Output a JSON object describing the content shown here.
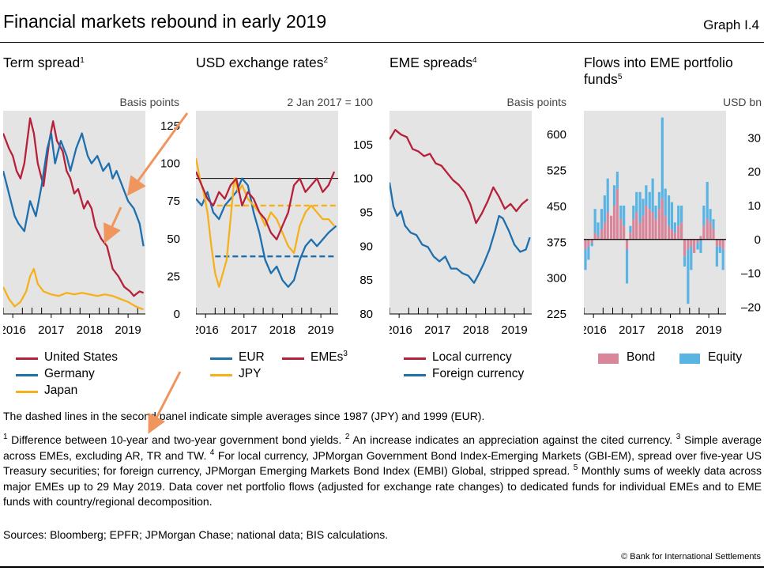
{
  "header": {
    "title": "Financial markets rebound in early 2019",
    "graph_number": "Graph I.4"
  },
  "colors": {
    "us": "#b5213a",
    "germany": "#1d6fae",
    "japan": "#f5b11b",
    "eur": "#1d6fae",
    "jpy": "#f5b11b",
    "emes": "#b5213a",
    "local": "#b5213a",
    "foreign": "#1d6fae",
    "bond": "#d9859a",
    "equity": "#5ab4e3",
    "panel_bg": "#e4e4e4",
    "arrow": "#f0955e"
  },
  "chart_data": [
    {
      "type": "line",
      "title": "Term spread",
      "title_sup": "1",
      "ylabel": "Basis points",
      "ylim": [
        0,
        135
      ],
      "yticks": [
        "125",
        "100",
        "75",
        "50",
        "25",
        "0"
      ],
      "ytick_values": [
        125,
        100,
        75,
        50,
        25,
        0
      ],
      "xlim": [
        2015.75,
        2019.45
      ],
      "xticks": [
        "2016",
        "2017",
        "2018",
        "2019"
      ],
      "xtick_values": [
        2016,
        2017,
        2018,
        2019
      ],
      "series": [
        {
          "name": "United States",
          "color_key": "us",
          "x": [
            2015.75,
            2015.9,
            2016.0,
            2016.1,
            2016.2,
            2016.3,
            2016.45,
            2016.55,
            2016.65,
            2016.8,
            2016.95,
            2017.05,
            2017.15,
            2017.3,
            2017.4,
            2017.5,
            2017.6,
            2017.7,
            2017.85,
            2017.95,
            2018.05,
            2018.15,
            2018.3,
            2018.45,
            2018.6,
            2018.75,
            2018.9,
            2019.05,
            2019.15,
            2019.3,
            2019.4
          ],
          "values": [
            120,
            110,
            105,
            95,
            90,
            100,
            130,
            120,
            100,
            85,
            115,
            128,
            115,
            108,
            95,
            90,
            80,
            83,
            70,
            75,
            70,
            58,
            50,
            45,
            30,
            25,
            18,
            15,
            12,
            15,
            14
          ]
        },
        {
          "name": "Germany",
          "color_key": "germany",
          "x": [
            2015.75,
            2015.85,
            2015.95,
            2016.05,
            2016.15,
            2016.3,
            2016.45,
            2016.6,
            2016.75,
            2016.9,
            2017.0,
            2017.1,
            2017.25,
            2017.4,
            2017.5,
            2017.65,
            2017.8,
            2017.95,
            2018.05,
            2018.2,
            2018.35,
            2018.5,
            2018.6,
            2018.7,
            2018.85,
            2019.0,
            2019.15,
            2019.3,
            2019.4
          ],
          "values": [
            95,
            85,
            75,
            65,
            60,
            55,
            75,
            65,
            85,
            110,
            120,
            100,
            115,
            105,
            95,
            110,
            120,
            105,
            100,
            105,
            95,
            100,
            90,
            95,
            85,
            75,
            70,
            60,
            45
          ]
        },
        {
          "name": "Japan",
          "color_key": "japan",
          "x": [
            2015.75,
            2015.9,
            2016.05,
            2016.2,
            2016.35,
            2016.45,
            2016.55,
            2016.65,
            2016.8,
            2017.0,
            2017.2,
            2017.4,
            2017.6,
            2017.8,
            2018.0,
            2018.2,
            2018.4,
            2018.6,
            2018.8,
            2019.0,
            2019.2,
            2019.4
          ],
          "values": [
            18,
            10,
            5,
            8,
            15,
            25,
            30,
            20,
            15,
            13,
            12,
            14,
            13,
            14,
            13,
            12,
            13,
            12,
            10,
            8,
            5,
            3
          ]
        }
      ]
    },
    {
      "type": "line",
      "title": "USD exchange rates",
      "title_sup": "2",
      "ylabel": "2 Jan 2017 = 100",
      "ylim": [
        80,
        110
      ],
      "yticks": [
        "105",
        "100",
        "95",
        "90",
        "85",
        "80"
      ],
      "ytick_values": [
        105,
        100,
        95,
        90,
        85,
        80
      ],
      "xlim": [
        2015.75,
        2019.45
      ],
      "xticks": [
        "2016",
        "2017",
        "2018",
        "2019"
      ],
      "xtick_values": [
        2016,
        2017,
        2018,
        2019
      ],
      "reference_line": 100,
      "averages": [
        {
          "name": "JPY average since 1987",
          "value": 96,
          "color_key": "jpy"
        },
        {
          "name": "EUR average since 1999",
          "value": 88.5,
          "color_key": "eur"
        }
      ],
      "series": [
        {
          "name": "EUR",
          "color_key": "eur",
          "x": [
            2015.75,
            2015.9,
            2016.05,
            2016.2,
            2016.35,
            2016.5,
            2016.65,
            2016.8,
            2016.95,
            2017.1,
            2017.25,
            2017.4,
            2017.55,
            2017.7,
            2017.85,
            2018.0,
            2018.15,
            2018.3,
            2018.45,
            2018.6,
            2018.75,
            2018.9,
            2019.05,
            2019.2,
            2019.4
          ],
          "values": [
            97,
            96,
            98,
            95,
            94,
            96,
            97,
            98,
            100,
            99,
            95,
            92,
            88,
            86,
            87,
            85,
            84,
            85,
            88,
            90,
            91,
            90,
            91,
            92,
            93
          ]
        },
        {
          "name": "JPY",
          "color_key": "jpy",
          "x": [
            2015.75,
            2015.85,
            2015.95,
            2016.05,
            2016.15,
            2016.25,
            2016.35,
            2016.45,
            2016.55,
            2016.65,
            2016.75,
            2016.85,
            2016.95,
            2017.1,
            2017.25,
            2017.4,
            2017.55,
            2017.7,
            2017.85,
            2018.0,
            2018.15,
            2018.3,
            2018.45,
            2018.6,
            2018.75,
            2018.9,
            2019.05,
            2019.2,
            2019.35
          ],
          "values": [
            103,
            100,
            98,
            95,
            90,
            86,
            84,
            86,
            88,
            94,
            100,
            98,
            99,
            97,
            96,
            95,
            93,
            95,
            94,
            92,
            90,
            89,
            93,
            95,
            96,
            95,
            94,
            94,
            93
          ]
        },
        {
          "name": "EMEs",
          "name_sup": "3",
          "color_key": "emes",
          "x": [
            2015.75,
            2015.9,
            2016.05,
            2016.2,
            2016.35,
            2016.5,
            2016.65,
            2016.8,
            2016.95,
            2017.1,
            2017.25,
            2017.4,
            2017.55,
            2017.7,
            2017.85,
            2018.0,
            2018.15,
            2018.3,
            2018.45,
            2018.6,
            2018.75,
            2018.9,
            2019.05,
            2019.2,
            2019.35
          ],
          "values": [
            101,
            99,
            97,
            96,
            98,
            97,
            99,
            100,
            96,
            98,
            97,
            95,
            94,
            92,
            91,
            93,
            95,
            99,
            100,
            98,
            99,
            100,
            98,
            99,
            101
          ]
        }
      ]
    },
    {
      "type": "line",
      "title": "EME spreads",
      "title_sup": "4",
      "ylabel": "Basis points",
      "ylim": [
        225,
        650
      ],
      "yticks": [
        "600",
        "525",
        "450",
        "375",
        "300",
        "225"
      ],
      "ytick_values": [
        600,
        525,
        450,
        375,
        300,
        225
      ],
      "xlim": [
        2015.75,
        2019.45
      ],
      "xticks": [
        "2016",
        "2017",
        "2018",
        "2019"
      ],
      "xtick_values": [
        2016,
        2017,
        2018,
        2019
      ],
      "series": [
        {
          "name": "Local currency",
          "color_key": "local",
          "x": [
            2015.75,
            2015.9,
            2016.05,
            2016.2,
            2016.35,
            2016.5,
            2016.65,
            2016.8,
            2016.95,
            2017.1,
            2017.25,
            2017.4,
            2017.55,
            2017.7,
            2017.85,
            2018.0,
            2018.15,
            2018.3,
            2018.45,
            2018.6,
            2018.75,
            2018.9,
            2019.05,
            2019.2,
            2019.35
          ],
          "values": [
            590,
            610,
            600,
            595,
            570,
            565,
            555,
            560,
            540,
            535,
            520,
            505,
            495,
            480,
            455,
            415,
            435,
            460,
            490,
            470,
            445,
            455,
            440,
            455,
            465
          ]
        },
        {
          "name": "Foreign currency",
          "color_key": "foreign",
          "x": [
            2015.75,
            2015.85,
            2015.95,
            2016.05,
            2016.15,
            2016.3,
            2016.45,
            2016.6,
            2016.75,
            2016.9,
            2017.05,
            2017.2,
            2017.35,
            2017.5,
            2017.65,
            2017.8,
            2017.95,
            2018.05,
            2018.2,
            2018.35,
            2018.5,
            2018.6,
            2018.7,
            2018.85,
            2019.0,
            2019.15,
            2019.3,
            2019.4
          ],
          "values": [
            500,
            450,
            430,
            440,
            410,
            395,
            390,
            370,
            365,
            345,
            335,
            345,
            320,
            320,
            310,
            305,
            290,
            305,
            330,
            360,
            400,
            430,
            425,
            400,
            370,
            355,
            360,
            385
          ]
        }
      ]
    },
    {
      "type": "bar",
      "title": "Flows into EME portfolio funds",
      "title_sup": "5",
      "ylabel": "USD bn",
      "ylim": [
        -22,
        38
      ],
      "yticks": [
        "30",
        "20",
        "10",
        "0",
        "–10",
        "–20"
      ],
      "ytick_values": [
        30,
        20,
        10,
        0,
        -10,
        -20
      ],
      "xlim": [
        2015.75,
        2019.45
      ],
      "xticks": [
        "2016",
        "2017",
        "2018",
        "2019"
      ],
      "xtick_values": [
        2016,
        2017,
        2018,
        2019
      ],
      "stacked": true,
      "x": [
        2015.75,
        2015.83,
        2015.92,
        2016.0,
        2016.08,
        2016.17,
        2016.25,
        2016.33,
        2016.42,
        2016.5,
        2016.58,
        2016.67,
        2016.75,
        2016.83,
        2016.92,
        2017.0,
        2017.08,
        2017.17,
        2017.25,
        2017.33,
        2017.42,
        2017.5,
        2017.58,
        2017.67,
        2017.75,
        2017.83,
        2017.92,
        2018.0,
        2018.08,
        2018.17,
        2018.25,
        2018.33,
        2018.42,
        2018.5,
        2018.58,
        2018.67,
        2018.75,
        2018.83,
        2018.92,
        2019.0,
        2019.08,
        2019.17,
        2019.25,
        2019.33
      ],
      "series": [
        {
          "name": "Bond",
          "color_key": "bond",
          "values": [
            -3,
            -2,
            -1,
            2,
            1,
            3,
            5,
            8,
            7,
            10,
            15,
            6,
            4,
            -3,
            2,
            6,
            8,
            5,
            7,
            10,
            9,
            8,
            6,
            9,
            12,
            7,
            4,
            3,
            2,
            4,
            5,
            -5,
            -3,
            -2,
            -4,
            -1,
            1,
            4,
            6,
            5,
            3,
            -2,
            -2,
            -3
          ]
        },
        {
          "name": "Equity",
          "color_key": "equity",
          "values": [
            -6,
            -4,
            -1,
            7,
            4,
            6,
            8,
            10,
            0,
            6,
            5,
            4,
            6,
            -10,
            2,
            4,
            6,
            9,
            5,
            6,
            5,
            10,
            4,
            5,
            24,
            8,
            9,
            8,
            3,
            6,
            5,
            -3,
            -16,
            -7,
            0,
            -2,
            -4,
            6,
            11,
            4,
            3,
            -6,
            -2,
            -6
          ]
        }
      ]
    }
  ],
  "legends": {
    "panel1": [
      "United States",
      "Germany",
      "Japan"
    ],
    "panel2": {
      "eur": "EUR",
      "emes": "EMEs",
      "emes_sup": "3",
      "jpy": "JPY"
    },
    "panel3": [
      "Local currency",
      "Foreign currency"
    ],
    "panel4": [
      "Bond",
      "Equity"
    ]
  },
  "notes": {
    "dashed": "The dashed lines in the second panel indicate simple averages since 1987 (JPY) and 1999 (EUR).",
    "f1_num": "1",
    "f1": " Difference between 10-year and two-year government bond yields. ",
    "f2_num": "2",
    "f2": " An increase indicates an appreciation against the cited currency. ",
    "f3_num": "3",
    "f3": " Simple average across EMEs, excluding AR, TR and TW. ",
    "f4_num": "4",
    "f4": " For local currency, JPMorgan Government Bond Index-Emerging Markets (GBI-EM), spread over five-year US Treasury securities; for foreign currency, JPMorgan Emerging Markets Bond Index (EMBI) Global, stripped spread. ",
    "f5_num": "5",
    "f5": " Monthly sums of weekly data across major EMEs up to 29 May 2019. Data cover net portfolio flows (adjusted for exchange rate changes) to dedicated funds for individual EMEs and to EME funds with country/regional decomposition.",
    "sources": "Sources: Bloomberg; EPFR; JPMorgan Chase; national data; BIS calculations.",
    "copyright": "© Bank for International Settlements"
  }
}
